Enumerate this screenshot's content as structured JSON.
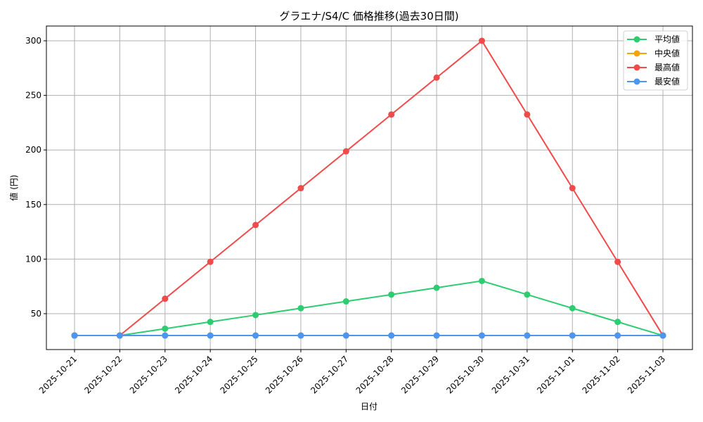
{
  "chart_data": {
    "type": "line",
    "title": "グラエナ/S4/C 価格推移(過去30日間)",
    "xlabel": "日付",
    "ylabel": "値 (円)",
    "categories": [
      "2025-10-21",
      "2025-10-22",
      "2025-10-23",
      "2025-10-24",
      "2025-10-25",
      "2025-10-26",
      "2025-10-27",
      "2025-10-28",
      "2025-10-29",
      "2025-10-30",
      "2025-10-31",
      "2025-11-01",
      "2025-11-02",
      "2025-11-03"
    ],
    "series": [
      {
        "name": "平均値",
        "color": "#2ecc71",
        "values": [
          30,
          30,
          36.25,
          42.5,
          48.75,
          55,
          61.25,
          67.5,
          73.75,
          80,
          67.5,
          55,
          42.5,
          30
        ]
      },
      {
        "name": "中央値",
        "color": "#f5a30a",
        "values": [
          30,
          30,
          30,
          30,
          30,
          30,
          30,
          30,
          30,
          30,
          30,
          30,
          30,
          30
        ]
      },
      {
        "name": "最高値",
        "color": "#f04a4a",
        "values": [
          30,
          30,
          63.75,
          97.5,
          131.25,
          165,
          198.75,
          232.5,
          266.25,
          300,
          232.5,
          165,
          97.5,
          30
        ]
      },
      {
        "name": "最安値",
        "color": "#4a96f0",
        "values": [
          30,
          30,
          30,
          30,
          30,
          30,
          30,
          30,
          30,
          30,
          30,
          30,
          30,
          30
        ]
      }
    ],
    "yticks": [
      50,
      100,
      150,
      200,
      250,
      300
    ],
    "ylim": [
      16.5,
      313.5
    ],
    "grid": true,
    "legend_position": "upper right",
    "x_tick_rotation": 45
  }
}
